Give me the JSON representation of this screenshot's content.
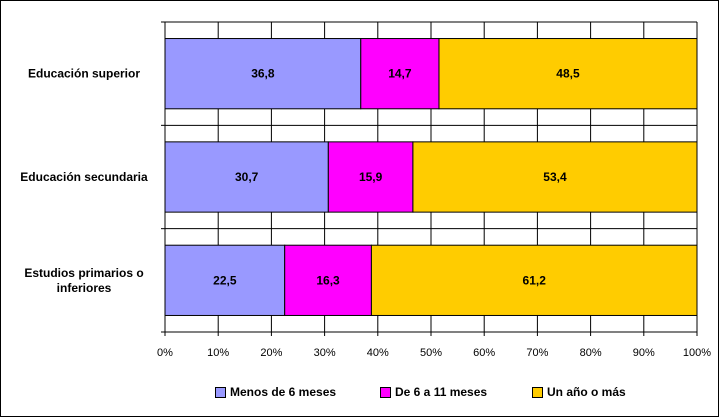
{
  "chart_data": {
    "type": "bar",
    "orientation": "horizontal",
    "stacked": true,
    "percent": true,
    "categories": [
      "Educación superior",
      "Educación secundaria",
      "Estudios primarios o inferiores"
    ],
    "category_lines": [
      [
        "Educación superior"
      ],
      [
        "Educación secundaria"
      ],
      [
        "Estudios primarios o",
        "inferiores"
      ]
    ],
    "series": [
      {
        "name": "Menos de 6 meses",
        "values": [
          36.8,
          30.7,
          22.5
        ],
        "labels": [
          "36,8",
          "30,7",
          "22,5"
        ],
        "color": "#9999FF"
      },
      {
        "name": "De 6 a 11 meses",
        "values": [
          14.7,
          15.9,
          16.3
        ],
        "labels": [
          "14,7",
          "15,9",
          "16,3"
        ],
        "color": "#FF00FF"
      },
      {
        "name": "Un año o más",
        "values": [
          48.5,
          53.4,
          61.2
        ],
        "labels": [
          "48,5",
          "53,4",
          "61,2"
        ],
        "color": "#FFCC00"
      }
    ],
    "x_ticks": [
      "0%",
      "10%",
      "20%",
      "30%",
      "40%",
      "50%",
      "60%",
      "70%",
      "80%",
      "90%",
      "100%"
    ],
    "xlim": [
      0,
      100
    ],
    "grid": true,
    "legend_position": "bottom",
    "title": "",
    "xlabel": "",
    "ylabel": ""
  }
}
